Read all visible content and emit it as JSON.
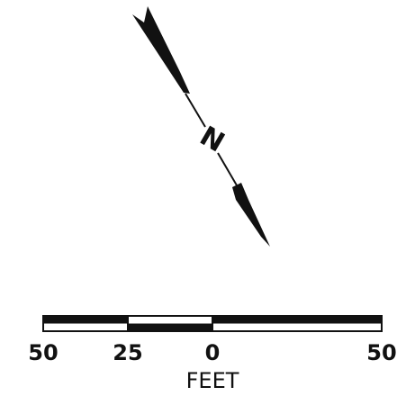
{
  "north_arrow": {
    "letter": "N"
  },
  "scale_bar": {
    "tick_labels": [
      "50",
      "25",
      "0",
      "50"
    ],
    "units": "FEET"
  },
  "colors": {
    "ink": "#111111",
    "paper": "#ffffff"
  }
}
